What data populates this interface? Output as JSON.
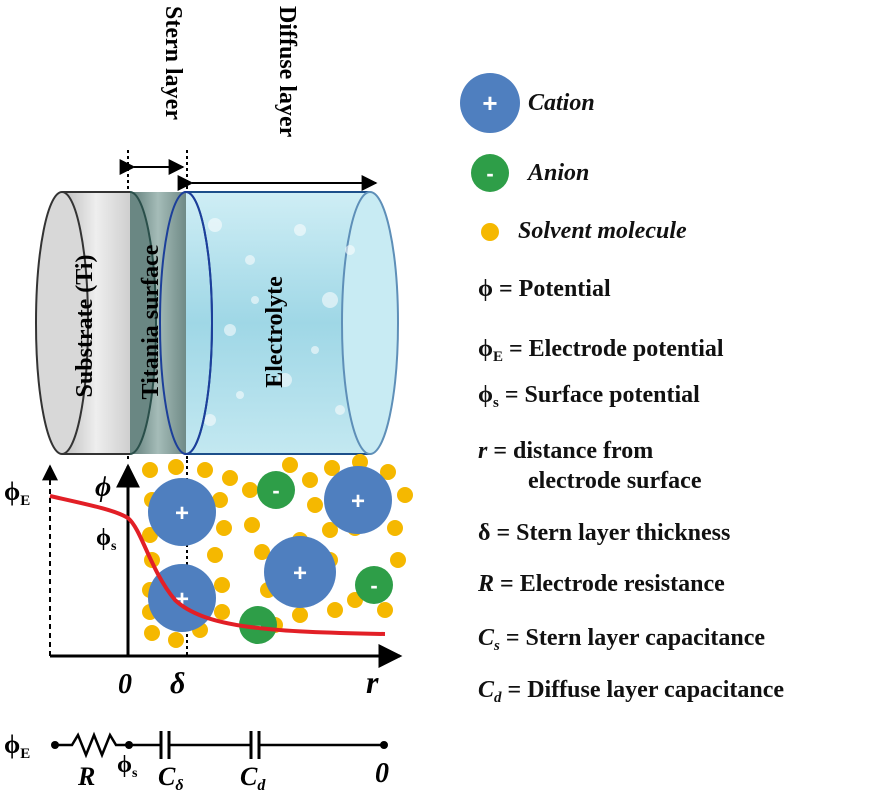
{
  "top_labels": {
    "stern": "Stern layer",
    "diffuse": "Diffuse  layer"
  },
  "cylinder_labels": {
    "substrate": "Substrate (Ti)",
    "titania": "Titania surface",
    "electrolyte": "Electrolyte"
  },
  "ion_signs": {
    "plus": "+",
    "minus": "-"
  },
  "plot": {
    "phi_e": "ϕ",
    "phi_e_sub": "E",
    "phi_marker": "ϕ",
    "phi_s": "ϕ",
    "phi_s_sub": "s",
    "x_zero": "0",
    "x_delta": "δ",
    "x_r": "r"
  },
  "circuit": {
    "start": "ϕ",
    "start_sub": "E",
    "resistor": "R",
    "node": "ϕ",
    "node_sub": "s",
    "cap1": "C",
    "cap1_sub": "δ",
    "cap2": "C",
    "cap2_sub": "d",
    "end": "0"
  },
  "legend": {
    "cation": "Cation",
    "anion": "Anion",
    "solvent": "Solvent molecule",
    "potential": "ϕ = Potential",
    "electrode_potential_sym": "ϕ",
    "electrode_potential_sub": "E",
    "electrode_potential": " = Electrode potential",
    "surface_potential_sym": "ϕ",
    "surface_potential_sub": "s",
    "surface_potential": " = Surface potential",
    "distance_sym": "r",
    "distance_line1": " = distance from",
    "distance_line2": "electrode surface",
    "stern_thickness": "δ = Stern layer thickness",
    "resistance_sym": "R",
    "resistance": " = Electrode resistance",
    "cs_sym": "C",
    "cs_sub": "s",
    "cs": " = Stern layer capacitance",
    "cd_sym": "C",
    "cd_sub": "d",
    "cd": " = Diffuse layer capacitance"
  },
  "colors": {
    "cation": "#4f7fbf",
    "anion": "#2e9e48",
    "solvent": "#f5b800",
    "curve": "#e21f26",
    "electrolyte": "#a8dde9",
    "substrate": "#e3e3e3",
    "titania": "#7f9a96"
  }
}
